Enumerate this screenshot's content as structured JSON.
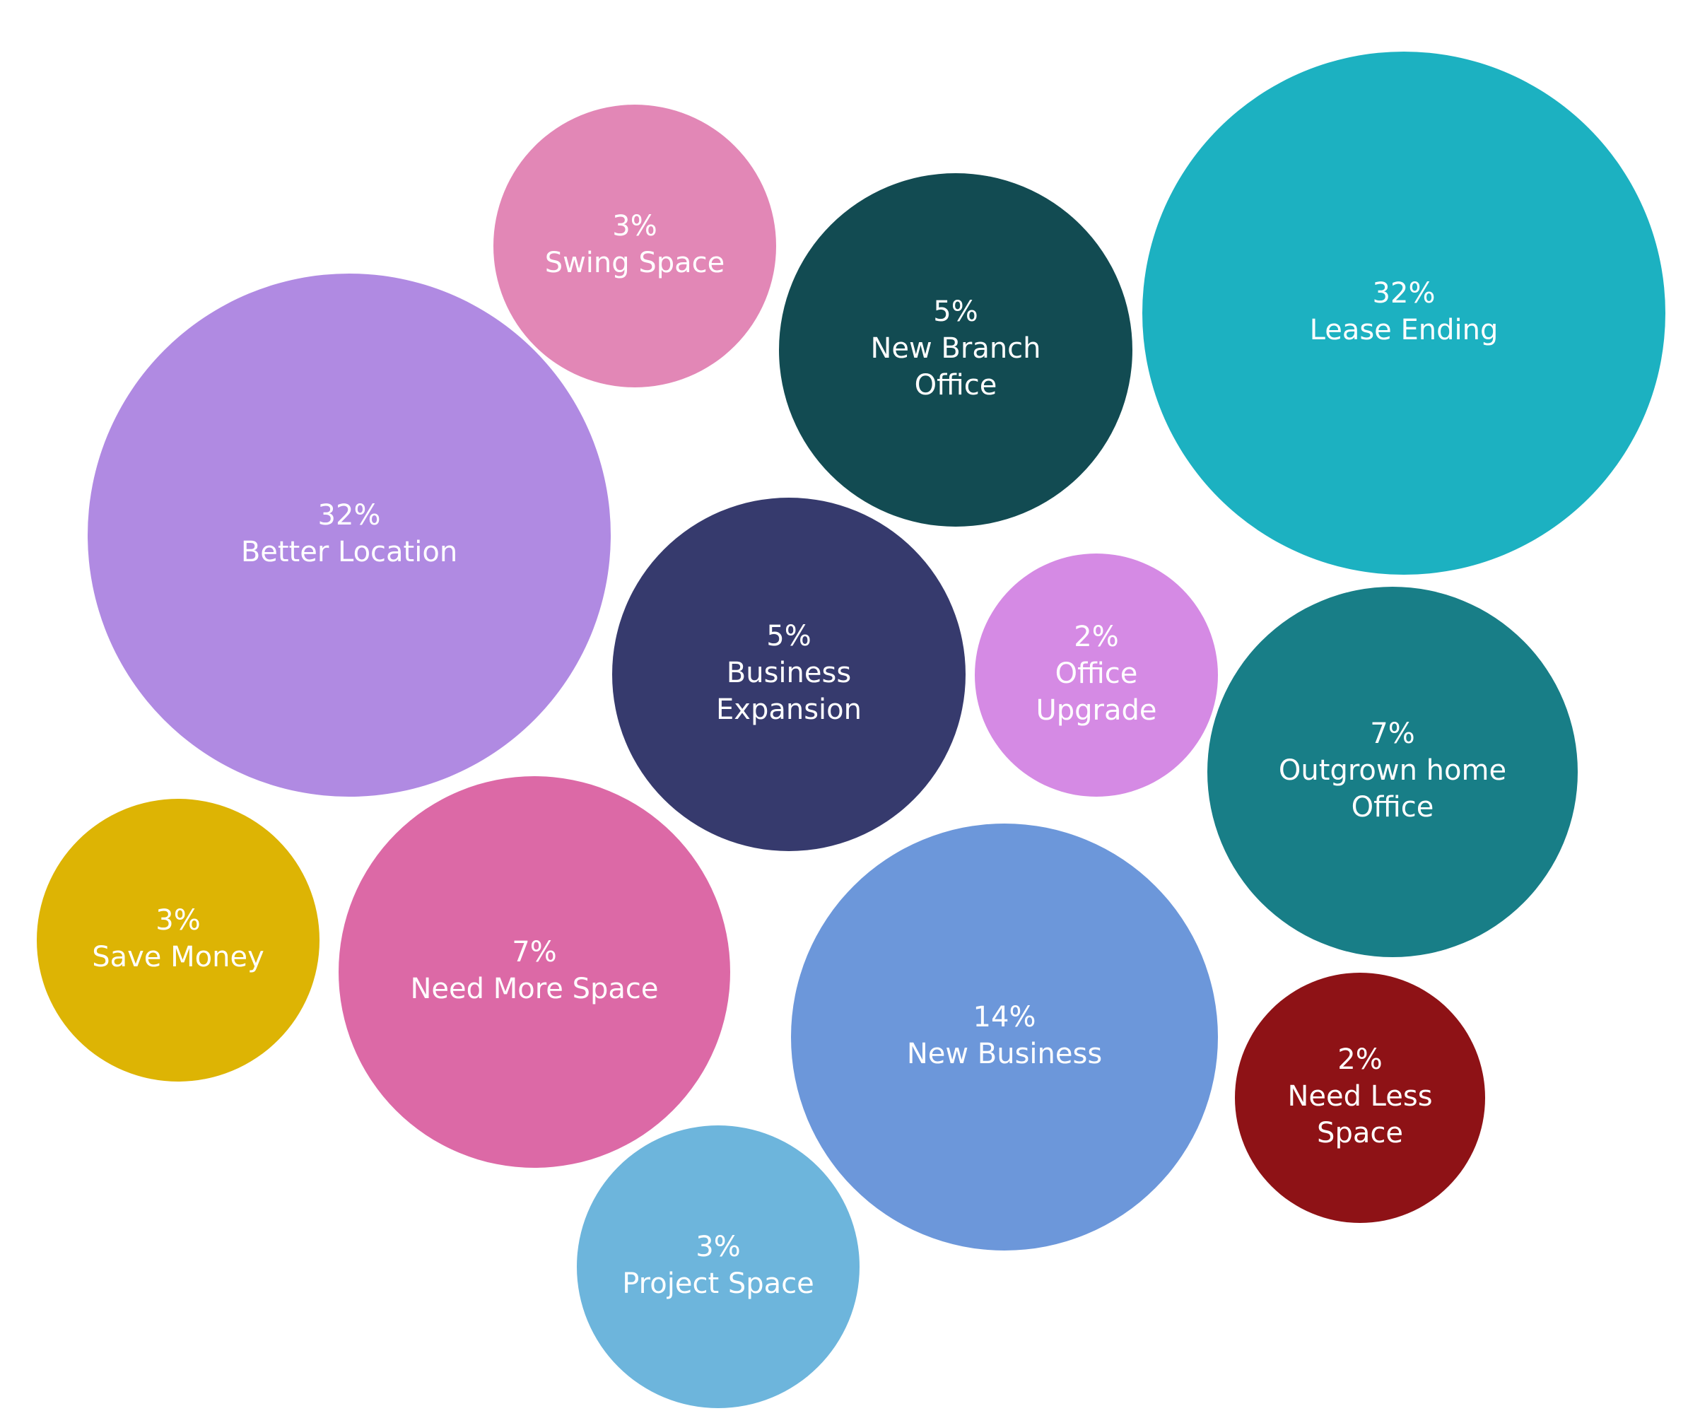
{
  "chart_data": {
    "type": "bubble",
    "label_color": "#ffffff",
    "bubbles": [
      {
        "value": 3,
        "percent_label": "3%",
        "label_lines": [
          "Swing Space"
        ],
        "color": "#e287b6"
      },
      {
        "value": 5,
        "percent_label": "5%",
        "label_lines": [
          "New Branch",
          "Office"
        ],
        "color": "#124b52"
      },
      {
        "value": 32,
        "percent_label": "32%",
        "label_lines": [
          "Lease Ending"
        ],
        "color": "#1cb1c1"
      },
      {
        "value": 32,
        "percent_label": "32%",
        "label_lines": [
          "Better Location"
        ],
        "color": "#b08ae2"
      },
      {
        "value": 5,
        "percent_label": "5%",
        "label_lines": [
          "Business",
          "Expansion"
        ],
        "color": "#363a6d"
      },
      {
        "value": 2,
        "percent_label": "2%",
        "label_lines": [
          "Office",
          "Upgrade"
        ],
        "color": "#d58ae4"
      },
      {
        "value": 7,
        "percent_label": "7%",
        "label_lines": [
          "Outgrown home",
          "Office"
        ],
        "color": "#187e87"
      },
      {
        "value": 3,
        "percent_label": "3%",
        "label_lines": [
          "Save Money"
        ],
        "color": "#ddb404"
      },
      {
        "value": 7,
        "percent_label": "7%",
        "label_lines": [
          "Need More Space"
        ],
        "color": "#dc69a6"
      },
      {
        "value": 14,
        "percent_label": "14%",
        "label_lines": [
          "New Business"
        ],
        "color": "#6c97da"
      },
      {
        "value": 2,
        "percent_label": "2%",
        "label_lines": [
          "Need Less",
          "Space"
        ],
        "color": "#8e1216"
      },
      {
        "value": 3,
        "percent_label": "3%",
        "label_lines": [
          "Project Space"
        ],
        "color": "#6db5dc"
      }
    ]
  }
}
